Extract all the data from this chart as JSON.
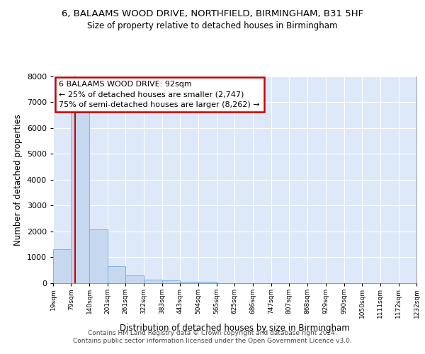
{
  "title1": "6, BALAAMS WOOD DRIVE, NORTHFIELD, BIRMINGHAM, B31 5HF",
  "title2": "Size of property relative to detached houses in Birmingham",
  "xlabel": "Distribution of detached houses by size in Birmingham",
  "ylabel": "Number of detached properties",
  "footer1": "Contains HM Land Registry data © Crown copyright and database right 2024.",
  "footer2": "Contains public sector information licensed under the Open Government Licence v3.0.",
  "annotation_line1": "6 BALAAMS WOOD DRIVE: 92sqm",
  "annotation_line2": "← 25% of detached houses are smaller (2,747)",
  "annotation_line3": "75% of semi-detached houses are larger (8,262) →",
  "subject_value": 92,
  "bar_color": "#c5d8f0",
  "bar_edge_color": "#7baad4",
  "subject_line_color": "#cc0000",
  "plot_bg_color": "#dde8f8",
  "fig_bg_color": "#ffffff",
  "grid_color": "#ffffff",
  "bins": [
    19,
    79,
    140,
    201,
    261,
    322,
    383,
    443,
    504,
    565,
    625,
    686,
    747,
    807,
    868,
    929,
    990,
    1050,
    1111,
    1172,
    1232
  ],
  "bin_labels": [
    "19sqm",
    "79sqm",
    "140sqm",
    "201sqm",
    "261sqm",
    "322sqm",
    "383sqm",
    "443sqm",
    "504sqm",
    "565sqm",
    "625sqm",
    "686sqm",
    "747sqm",
    "807sqm",
    "868sqm",
    "929sqm",
    "990sqm",
    "1050sqm",
    "1111sqm",
    "1172sqm",
    "1232sqm"
  ],
  "counts": [
    1300,
    6600,
    2080,
    650,
    300,
    150,
    110,
    60,
    60,
    0,
    0,
    0,
    0,
    0,
    0,
    0,
    0,
    0,
    0,
    0
  ],
  "ylim": [
    0,
    8000
  ],
  "yticks": [
    0,
    1000,
    2000,
    3000,
    4000,
    5000,
    6000,
    7000,
    8000
  ]
}
